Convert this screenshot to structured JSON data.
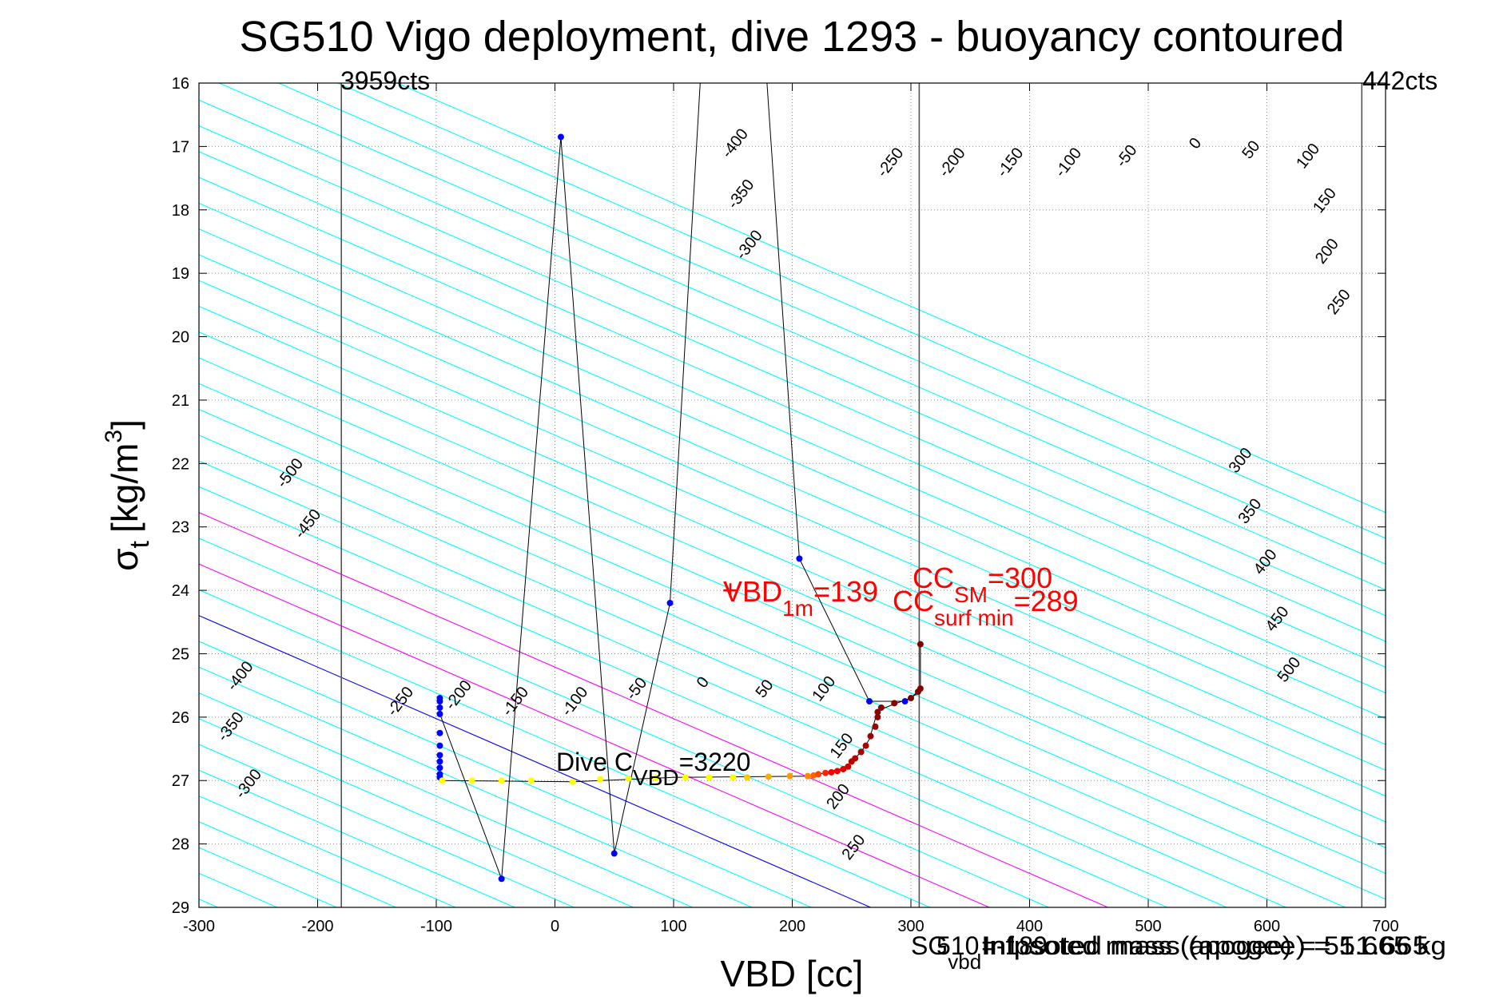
{
  "chart_data": {
    "type": "scatter",
    "title": "SG510 Vigo deployment, dive 1293 - buoyancy contoured",
    "xlabel": "VBD [cc]",
    "ylabel_main": "σ",
    "ylabel_sub": "t",
    "ylabel_units": "[kg/m",
    "ylabel_sup": "3",
    "ylabel_close": "]",
    "xlim": [
      -300,
      700
    ],
    "ylim": [
      16,
      29
    ],
    "y_reversed": true,
    "xticks": [
      -300,
      -200,
      -100,
      0,
      100,
      200,
      300,
      400,
      500,
      600,
      700
    ],
    "yticks": [
      16,
      17,
      18,
      19,
      20,
      21,
      22,
      23,
      24,
      25,
      26,
      27,
      28,
      29
    ],
    "grid": true,
    "contours": {
      "levels": [
        -500,
        -450,
        -400,
        -350,
        -300,
        -250,
        -200,
        -150,
        -100,
        -50,
        0,
        50,
        100,
        150,
        200,
        250,
        300,
        350,
        400,
        450,
        500
      ],
      "highlight": [
        {
          "level": 0,
          "color": "#0000ff"
        },
        {
          "level": 100,
          "color": "#ff00ff"
        },
        {
          "level": 200,
          "color": "#ff00ff"
        }
      ],
      "base_color": "#00ffff",
      "x_at_sigma27_for_zero": 20,
      "slope_cc_per_sigma": 123
    },
    "contour_labels": [
      {
        "text": "-500",
        "x": -220,
        "y": 22.2
      },
      {
        "text": "-450",
        "x": -205,
        "y": 23.0
      },
      {
        "text": "-400",
        "x": -262,
        "y": 25.4
      },
      {
        "text": "-350",
        "x": -270,
        "y": 26.2
      },
      {
        "text": "-300",
        "x": -255,
        "y": 27.1
      },
      {
        "text": "-250",
        "x": -127,
        "y": 25.8
      },
      {
        "text": "-200",
        "x": -78,
        "y": 25.7
      },
      {
        "text": "-150",
        "x": -30,
        "y": 25.8
      },
      {
        "text": "-100",
        "x": 20,
        "y": 25.8
      },
      {
        "text": "-50",
        "x": 72,
        "y": 25.6
      },
      {
        "text": "0",
        "x": 128,
        "y": 25.5
      },
      {
        "text": "50",
        "x": 180,
        "y": 25.6
      },
      {
        "text": "100",
        "x": 230,
        "y": 25.6
      },
      {
        "text": "150",
        "x": 245,
        "y": 26.5
      },
      {
        "text": "200",
        "x": 242,
        "y": 27.3
      },
      {
        "text": "250",
        "x": 255,
        "y": 28.1
      },
      {
        "text": "-400",
        "x": 155,
        "y": 17.0
      },
      {
        "text": "-350",
        "x": 160,
        "y": 17.8
      },
      {
        "text": "-300",
        "x": 167,
        "y": 18.6
      },
      {
        "text": "-250",
        "x": 286,
        "y": 17.3
      },
      {
        "text": "-200",
        "x": 338,
        "y": 17.3
      },
      {
        "text": "-150",
        "x": 387,
        "y": 17.3
      },
      {
        "text": "-100",
        "x": 436,
        "y": 17.3
      },
      {
        "text": "-50",
        "x": 485,
        "y": 17.2
      },
      {
        "text": "0",
        "x": 543,
        "y": 17.0
      },
      {
        "text": "50",
        "x": 590,
        "y": 17.1
      },
      {
        "text": "100",
        "x": 638,
        "y": 17.2
      },
      {
        "text": "150",
        "x": 652,
        "y": 17.9
      },
      {
        "text": "200",
        "x": 654,
        "y": 18.7
      },
      {
        "text": "250",
        "x": 664,
        "y": 19.5
      },
      {
        "text": "300",
        "x": 581,
        "y": 22.0
      },
      {
        "text": "350",
        "x": 589,
        "y": 22.8
      },
      {
        "text": "400",
        "x": 602,
        "y": 23.6
      },
      {
        "text": "450",
        "x": 612,
        "y": 24.5
      },
      {
        "text": "500",
        "x": 622,
        "y": 25.3
      }
    ],
    "vertical_lines": [
      {
        "x": -180,
        "label": "3959cts"
      },
      {
        "x": 307,
        "label": ""
      },
      {
        "x": 680,
        "label": "442cts"
      }
    ],
    "profile_path": [
      {
        "x": -97,
        "y": 25.95
      },
      {
        "x": -45,
        "y": 28.55
      },
      {
        "x": 5,
        "y": 16.85
      },
      {
        "x": 50,
        "y": 28.15
      },
      {
        "x": 97,
        "y": 24.2
      },
      {
        "x": 123,
        "y": 15.8
      },
      {
        "x": 178,
        "y": 15.8
      },
      {
        "x": 206,
        "y": 23.5
      },
      {
        "x": 265,
        "y": 25.75
      },
      {
        "x": 295,
        "y": 25.75
      },
      {
        "x": 308,
        "y": 25.6
      }
    ],
    "vbd_track": [
      {
        "x": -97,
        "y": 27.0
      },
      {
        "x": 15,
        "y": 27.02
      },
      {
        "x": 100,
        "y": 26.95
      },
      {
        "x": 215,
        "y": 26.93
      },
      {
        "x": 245,
        "y": 26.8
      },
      {
        "x": 258,
        "y": 26.55
      },
      {
        "x": 265,
        "y": 26.35
      },
      {
        "x": 272,
        "y": 25.9
      },
      {
        "x": 285,
        "y": 25.8
      },
      {
        "x": 300,
        "y": 25.7
      },
      {
        "x": 308,
        "y": 25.55
      },
      {
        "x": 308,
        "y": 24.85
      }
    ],
    "points": [
      {
        "x": -97,
        "y": 25.7,
        "c": "#0000ff"
      },
      {
        "x": -97,
        "y": 25.75,
        "c": "#0000ff"
      },
      {
        "x": -97,
        "y": 25.85,
        "c": "#0000ff"
      },
      {
        "x": -97,
        "y": 25.95,
        "c": "#0000ff"
      },
      {
        "x": -97,
        "y": 26.25,
        "c": "#0000ff"
      },
      {
        "x": -97,
        "y": 26.45,
        "c": "#0000ff"
      },
      {
        "x": -97,
        "y": 26.6,
        "c": "#0000ff"
      },
      {
        "x": -97,
        "y": 26.7,
        "c": "#0000ff"
      },
      {
        "x": -97,
        "y": 26.8,
        "c": "#0000ff"
      },
      {
        "x": -97,
        "y": 26.9,
        "c": "#0000ff"
      },
      {
        "x": -97,
        "y": 26.95,
        "c": "#0000ff"
      },
      {
        "x": -45,
        "y": 28.55,
        "c": "#0000ff"
      },
      {
        "x": 5,
        "y": 16.85,
        "c": "#0000ff"
      },
      {
        "x": 50,
        "y": 28.15,
        "c": "#0000ff"
      },
      {
        "x": 97,
        "y": 24.2,
        "c": "#0000ff"
      },
      {
        "x": 206,
        "y": 23.5,
        "c": "#0000ff"
      },
      {
        "x": 265,
        "y": 25.75,
        "c": "#0000ff"
      },
      {
        "x": 295,
        "y": 25.75,
        "c": "#0000ff"
      },
      {
        "x": -95,
        "y": 27.0,
        "c": "#ffff00"
      },
      {
        "x": -70,
        "y": 27.0,
        "c": "#ffff00"
      },
      {
        "x": -45,
        "y": 27.0,
        "c": "#ffff00"
      },
      {
        "x": -20,
        "y": 27.0,
        "c": "#ffff00"
      },
      {
        "x": 15,
        "y": 27.02,
        "c": "#ffff00"
      },
      {
        "x": 38,
        "y": 26.98,
        "c": "#ffff00"
      },
      {
        "x": 62,
        "y": 26.97,
        "c": "#ffff00"
      },
      {
        "x": 85,
        "y": 26.96,
        "c": "#ffff00"
      },
      {
        "x": 110,
        "y": 26.95,
        "c": "#ffff00"
      },
      {
        "x": 130,
        "y": 26.95,
        "c": "#ffff00"
      },
      {
        "x": 150,
        "y": 26.95,
        "c": "#ffff00"
      },
      {
        "x": 162,
        "y": 26.95,
        "c": "#ffcc00"
      },
      {
        "x": 180,
        "y": 26.94,
        "c": "#ffaa00"
      },
      {
        "x": 198,
        "y": 26.93,
        "c": "#ff9900"
      },
      {
        "x": 213,
        "y": 26.93,
        "c": "#ff8800"
      },
      {
        "x": 218,
        "y": 26.92,
        "c": "#ff6600"
      },
      {
        "x": 222,
        "y": 26.9,
        "c": "#ff4400"
      },
      {
        "x": 228,
        "y": 26.88,
        "c": "#ff2200"
      },
      {
        "x": 233,
        "y": 26.87,
        "c": "#ff0000"
      },
      {
        "x": 238,
        "y": 26.85,
        "c": "#ee0000"
      },
      {
        "x": 243,
        "y": 26.82,
        "c": "#dd0000"
      },
      {
        "x": 247,
        "y": 26.78,
        "c": "#cc0000"
      },
      {
        "x": 250,
        "y": 26.7,
        "c": "#bb0000"
      },
      {
        "x": 253,
        "y": 26.65,
        "c": "#bb0000"
      },
      {
        "x": 258,
        "y": 26.55,
        "c": "#aa0000"
      },
      {
        "x": 262,
        "y": 26.45,
        "c": "#aa0000"
      },
      {
        "x": 266,
        "y": 26.3,
        "c": "#990000"
      },
      {
        "x": 270,
        "y": 26.15,
        "c": "#990000"
      },
      {
        "x": 272,
        "y": 26.0,
        "c": "#880000"
      },
      {
        "x": 272,
        "y": 25.92,
        "c": "#880000"
      },
      {
        "x": 275,
        "y": 25.85,
        "c": "#880000"
      },
      {
        "x": 286,
        "y": 25.78,
        "c": "#880000"
      },
      {
        "x": 300,
        "y": 25.7,
        "c": "#800000"
      },
      {
        "x": 306,
        "y": 25.6,
        "c": "#800000"
      },
      {
        "x": 308,
        "y": 25.55,
        "c": "#800000"
      },
      {
        "x": 308,
        "y": 24.85,
        "c": "#800000"
      }
    ],
    "annotations": {
      "vbd1m_main": "VBD",
      "vbd1m_sub": "1m",
      "vbd1m_val": "=139",
      "vbd1m_marker": "+",
      "ccsm_main": "CC",
      "ccsm_sub": "SM",
      "ccsm_val": "=300",
      "ccsurf_main": "CC",
      "ccsurf_sub": "surf min",
      "ccsurf_val": "=289",
      "dive_main": "Dive C",
      "dive_sub": "VBD",
      "dive_val": "=3220"
    },
    "footer": {
      "left_main": "SG",
      "left_sub": "vbd",
      "left_val": "=-189",
      "overlay_1": "510",
      "overlay_2": "Infpsoted mass (apogee) = 51.665",
      "overlay_3": "Infpsoted mass (apogee) = 51.665 kg"
    },
    "colors": {
      "grid": "#8a8a8a",
      "contour": "#00ffff",
      "zero_contour": "#0000ff",
      "highlight_contour": "#ff00ff",
      "annotation_red": "#ff0000",
      "profile_line": "#000000"
    }
  }
}
